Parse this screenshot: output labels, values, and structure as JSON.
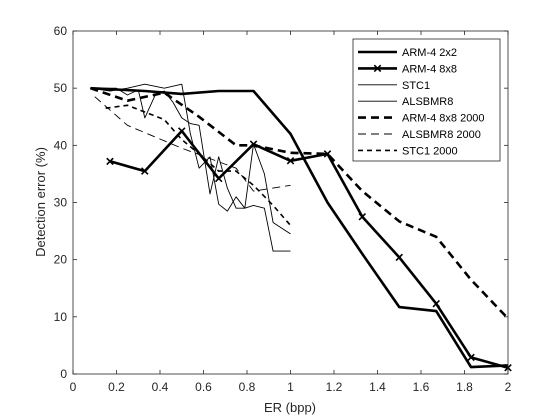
{
  "chart_data": {
    "type": "line",
    "title": "",
    "xlabel": "ER (bpp)",
    "ylabel": "Detection error (%)",
    "xlim": [
      0,
      2
    ],
    "ylim": [
      0,
      60
    ],
    "xticks": [
      0,
      0.2,
      0.4,
      0.6,
      0.8,
      1,
      1.2,
      1.4,
      1.6,
      1.8,
      2
    ],
    "xtick_labels": [
      "0",
      "0.2",
      "0.4",
      "0.6",
      "0.8",
      "1",
      "1.2",
      "1.4",
      "1.6",
      "1.8",
      "2"
    ],
    "yticks": [
      0,
      10,
      20,
      30,
      40,
      50,
      60
    ],
    "ytick_labels": [
      "0",
      "10",
      "20",
      "30",
      "40",
      "50",
      "60"
    ],
    "grid": false,
    "legend_position": "top-right",
    "series": [
      {
        "name": "ARM-4 2x2",
        "color": "#000000",
        "width": "thick",
        "dash": "solid",
        "marker": "none",
        "x": [
          0.08,
          0.33,
          0.5,
          0.67,
          0.83,
          1.0,
          1.17,
          1.33,
          1.5,
          1.67,
          1.83,
          2.0
        ],
        "y": [
          50,
          49.5,
          49,
          49.5,
          49.5,
          42,
          30,
          21,
          11.7,
          11,
          1.2,
          1.5
        ]
      },
      {
        "name": "ARM-4 8x8",
        "color": "#000000",
        "width": "thick",
        "dash": "solid",
        "marker": "x",
        "x": [
          0.17,
          0.33,
          0.5,
          0.67,
          0.83,
          1.0,
          1.17,
          1.33,
          1.5,
          1.67,
          1.83,
          2.0
        ],
        "y": [
          37.2,
          35.5,
          42.5,
          34.2,
          40.2,
          37.3,
          38.5,
          27.5,
          20.4,
          12.3,
          2.9,
          1.1
        ]
      },
      {
        "name": "STC1",
        "color": "#000000",
        "width": "thin",
        "dash": "solid",
        "marker": "none",
        "x": [
          0.08,
          0.17,
          0.25,
          0.33,
          0.42,
          0.5,
          0.54,
          0.58,
          0.63,
          0.67,
          0.71,
          0.75,
          0.79,
          0.83,
          0.88,
          0.92,
          0.96,
          1.0
        ],
        "y": [
          50,
          49.5,
          50,
          50.7,
          50,
          50.7,
          42,
          36,
          38,
          29.7,
          28.5,
          31,
          29,
          40.2,
          35,
          26.5,
          25.5,
          24.5
        ]
      },
      {
        "name": "ALSBMR8",
        "color": "#000000",
        "width": "thin",
        "dash": "solid",
        "marker": "none",
        "x": [
          0.08,
          0.2,
          0.25,
          0.3,
          0.33,
          0.38,
          0.42,
          0.46,
          0.5,
          0.54,
          0.58,
          0.63,
          0.67,
          0.71,
          0.75,
          0.79,
          0.83,
          0.88,
          0.92,
          0.96,
          1.0
        ],
        "y": [
          50,
          50,
          48.8,
          49.7,
          44.8,
          49,
          49.5,
          47.5,
          44.8,
          43.8,
          43.5,
          31.5,
          38,
          32.5,
          29,
          29,
          29.5,
          29,
          21.5,
          21.5,
          21.5
        ]
      },
      {
        "name": "ARM-4 8x8 2000",
        "color": "#000000",
        "width": "thick",
        "dash": "long",
        "marker": "none",
        "x": [
          0.08,
          0.25,
          0.42,
          0.58,
          0.75,
          0.83,
          1.0,
          1.17,
          1.33,
          1.5,
          1.67,
          1.83,
          2.0
        ],
        "y": [
          50,
          47.8,
          49.2,
          45,
          40,
          40,
          38.7,
          38.5,
          32,
          26.7,
          24,
          16.5,
          9.7
        ]
      },
      {
        "name": "ALSBMR8 2000",
        "color": "#000000",
        "width": "thin",
        "dash": "long",
        "marker": "none",
        "x": [
          0.1,
          0.25,
          0.5,
          0.75,
          0.83,
          1.0
        ],
        "y": [
          48.5,
          43.5,
          39.5,
          36,
          32,
          33
        ]
      },
      {
        "name": "STC1 2000",
        "color": "#000000",
        "width": "medium",
        "dash": "short",
        "marker": "none",
        "x": [
          0.15,
          0.25,
          0.42,
          0.5,
          0.58,
          0.67,
          0.75,
          0.83,
          0.92,
          1.0
        ],
        "y": [
          46.5,
          47,
          44.5,
          41,
          38.5,
          35.5,
          35.5,
          33,
          29.5,
          26
        ]
      }
    ]
  }
}
